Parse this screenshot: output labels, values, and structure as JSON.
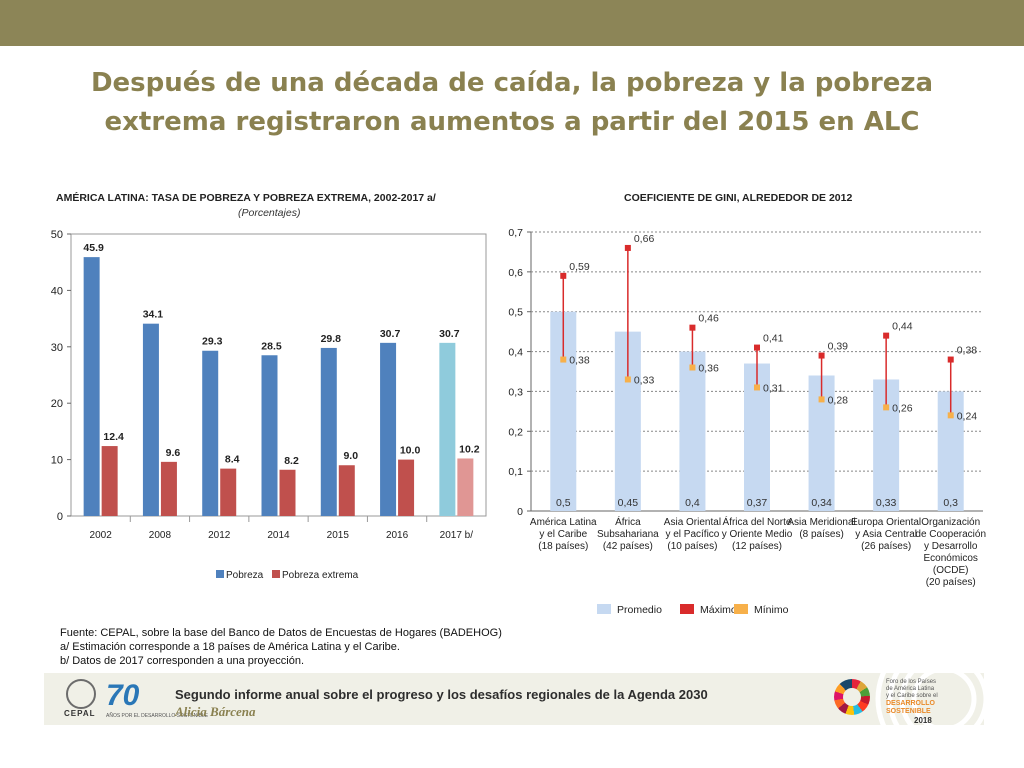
{
  "header": {
    "title_line1": "Después de una década de caída, la pobreza y la pobreza",
    "title_line2": "extrema registraron aumentos a partir del 2015 en ALC"
  },
  "colors": {
    "topbar": "#8c8557",
    "title": "#8a8150",
    "pobreza": "#4f81bd",
    "pobreza_proj": "#8fcbdc",
    "extrema": "#c0504d",
    "extrema_proj": "#e09694",
    "promedio": "#c6d9f1",
    "maximo": "#d92b2b",
    "minimo": "#f7b04a"
  },
  "chart_data": [
    {
      "type": "bar",
      "title": "AMÉRICA LATINA: TASA DE POBREZA Y POBREZA EXTREMA, 2002-2017 a/",
      "subtitle": "(Porcentajes)",
      "categories": [
        "2002",
        "2008",
        "2012",
        "2014",
        "2015",
        "2016",
        "2017 b/"
      ],
      "series": [
        {
          "name": "Pobreza",
          "values": [
            45.9,
            34.1,
            29.3,
            28.5,
            29.8,
            30.7,
            30.7
          ],
          "labels": [
            "45.9",
            "34.1",
            "29.3",
            "28.5",
            "29.8",
            "30.7",
            "30.7"
          ]
        },
        {
          "name": "Pobreza extrema",
          "values": [
            12.4,
            9.6,
            8.4,
            8.2,
            9.0,
            10.0,
            10.2
          ],
          "labels": [
            "12.4",
            "9.6",
            "8.4",
            "8.2",
            "9.0",
            "10.0",
            "10.2"
          ]
        }
      ],
      "yticks": [
        "0",
        "10",
        "20",
        "30",
        "40",
        "50"
      ],
      "ylim": [
        0,
        50
      ],
      "legend": [
        "Pobreza",
        "Pobreza extrema"
      ],
      "legend_position": "bottom"
    },
    {
      "type": "bar",
      "title": "COEFICIENTE DE GINI, ALREDEDOR DE 2012",
      "categories": [
        [
          "América Latina",
          "y el Caribe",
          "(18 países)"
        ],
        [
          "África",
          "Subsahariana",
          "(42 países)"
        ],
        [
          "Asia Oriental",
          "y el Pacífico",
          "(10 países)"
        ],
        [
          "África del Norte",
          "y Oriente Medio",
          "(12 países)"
        ],
        [
          "Asia Meridional",
          "(8 países)"
        ],
        [
          "Europa Oriental",
          "y Asia Central",
          "(26 países)"
        ],
        [
          "Organización",
          "de Cooperación",
          "y Desarrollo",
          "Económicos",
          "(OCDE)",
          "(20 países)"
        ]
      ],
      "promedio": [
        0.5,
        0.45,
        0.4,
        0.37,
        0.34,
        0.33,
        0.3
      ],
      "promedio_labels": [
        "0,5",
        "0,45",
        "0,4",
        "0,37",
        "0,34",
        "0,33",
        "0,3"
      ],
      "maximo": [
        0.59,
        0.66,
        0.46,
        0.41,
        0.39,
        0.44,
        0.38
      ],
      "maximo_labels": [
        "0,59",
        "0,66",
        "0,46",
        "0,41",
        "0,39",
        "0,44",
        "0,38"
      ],
      "minimo": [
        0.38,
        0.33,
        0.36,
        0.31,
        0.28,
        0.26,
        0.24
      ],
      "minimo_labels": [
        "0,38",
        "0,33",
        "0,36",
        "0,31",
        "0,28",
        "0,26",
        "0,24"
      ],
      "yticks": [
        "0",
        "0,1",
        "0,2",
        "0,3",
        "0,4",
        "0,5",
        "0,6",
        "0,7"
      ],
      "ylim": [
        0,
        0.7
      ],
      "legend": [
        "Promedio",
        "Máximo",
        "Mínimo"
      ],
      "legend_position": "bottom"
    }
  ],
  "source": {
    "line1": "Fuente: CEPAL, sobre la base del Banco de Datos de Encuestas de Hogares (BADEHOG)",
    "line2": "a/ Estimación corresponde a 18 países de América Latina y el Caribe.",
    "line3": "b/ Datos de 2017 corresponden a una proyección."
  },
  "footer": {
    "title": "Segundo informe anual sobre el progreso y los desafíos  regionales de la Agenda 2030",
    "author": "Alicia Bárcena",
    "cepal": "CEPAL",
    "seventy": "70",
    "seventy_sub": "AÑOS POR EL DESARROLLO SOSTENIBLE",
    "forum_line1": "Foro de los Países",
    "forum_line2": "de América Latina",
    "forum_line3": "y el Caribe sobre el",
    "sds_line1": "DESARROLLO",
    "sds_line2": "SOSTENIBLE",
    "year": "2018"
  }
}
